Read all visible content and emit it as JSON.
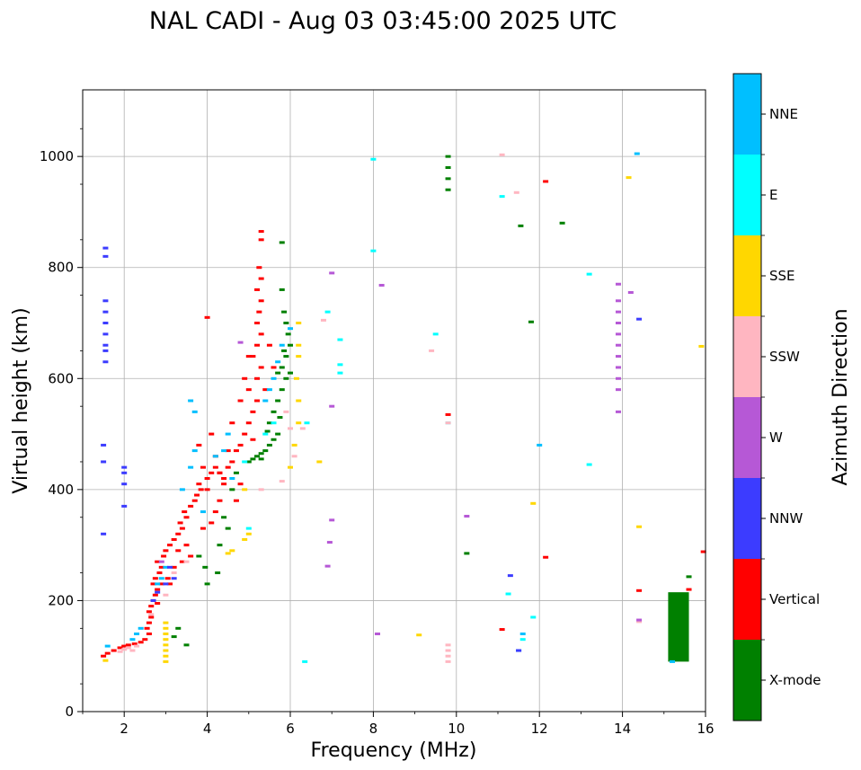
{
  "chart_data": {
    "type": "scatter",
    "title": "NAL CADI - Aug 03 03:45:00 2025 UTC",
    "xlabel": "Frequency (MHz)",
    "ylabel": "Virtual height (km)",
    "xlim": [
      1,
      16
    ],
    "ylim": [
      0,
      1120
    ],
    "xticks": [
      2,
      4,
      6,
      8,
      10,
      12,
      14,
      16
    ],
    "yticks": [
      0,
      200,
      400,
      600,
      800,
      1000
    ],
    "grid": true,
    "colorbar": {
      "title": "Azimuth Direction",
      "categories": [
        {
          "label": "NNE",
          "color": "#00bfff"
        },
        {
          "label": "E",
          "color": "#00ffff"
        },
        {
          "label": "SSE",
          "color": "#ffd700"
        },
        {
          "label": "SSW",
          "color": "#ffb6c1"
        },
        {
          "label": "W",
          "color": "#b658d6"
        },
        {
          "label": "NNW",
          "color": "#3c3cff"
        },
        {
          "label": "Vertical",
          "color": "#ff0000"
        },
        {
          "label": "X-mode",
          "color": "#008000"
        }
      ]
    },
    "series": [
      {
        "name": "Vertical",
        "color": "#ff0000",
        "points": [
          [
            1.5,
            100
          ],
          [
            1.6,
            105
          ],
          [
            1.75,
            110
          ],
          [
            1.9,
            115
          ],
          [
            2.0,
            118
          ],
          [
            2.1,
            120
          ],
          [
            2.25,
            122
          ],
          [
            2.4,
            125
          ],
          [
            2.5,
            130
          ],
          [
            2.6,
            140
          ],
          [
            2.55,
            150
          ],
          [
            2.6,
            160
          ],
          [
            2.65,
            170
          ],
          [
            2.6,
            180
          ],
          [
            2.65,
            190
          ],
          [
            2.7,
            200
          ],
          [
            2.75,
            210
          ],
          [
            2.8,
            220
          ],
          [
            2.7,
            230
          ],
          [
            2.75,
            240
          ],
          [
            2.85,
            250
          ],
          [
            2.9,
            260
          ],
          [
            2.8,
            270
          ],
          [
            2.95,
            280
          ],
          [
            3.0,
            290
          ],
          [
            3.1,
            300
          ],
          [
            3.2,
            310
          ],
          [
            3.3,
            320
          ],
          [
            3.4,
            330
          ],
          [
            3.35,
            340
          ],
          [
            3.5,
            350
          ],
          [
            3.45,
            360
          ],
          [
            3.6,
            370
          ],
          [
            3.7,
            380
          ],
          [
            3.75,
            390
          ],
          [
            3.85,
            400
          ],
          [
            3.8,
            410
          ],
          [
            4.0,
            420
          ],
          [
            4.1,
            430
          ],
          [
            4.2,
            440
          ],
          [
            4.3,
            430
          ],
          [
            4.4,
            420
          ],
          [
            4.5,
            440
          ],
          [
            4.6,
            450
          ],
          [
            4.7,
            470
          ],
          [
            4.8,
            480
          ],
          [
            4.9,
            500
          ],
          [
            5.0,
            520
          ],
          [
            5.1,
            540
          ],
          [
            5.2,
            560
          ],
          [
            5.0,
            580
          ],
          [
            5.2,
            600
          ],
          [
            5.3,
            620
          ],
          [
            5.1,
            640
          ],
          [
            5.2,
            660
          ],
          [
            5.3,
            680
          ],
          [
            5.2,
            700
          ],
          [
            5.25,
            720
          ],
          [
            5.3,
            740
          ],
          [
            5.2,
            760
          ],
          [
            5.3,
            780
          ],
          [
            5.25,
            800
          ],
          [
            5.3,
            850
          ],
          [
            5.3,
            865
          ],
          [
            3.4,
            270
          ],
          [
            3.6,
            280
          ],
          [
            3.5,
            300
          ],
          [
            3.3,
            290
          ],
          [
            3.9,
            330
          ],
          [
            4.1,
            340
          ],
          [
            4.2,
            360
          ],
          [
            4.3,
            380
          ],
          [
            4.0,
            400
          ],
          [
            3.9,
            440
          ],
          [
            4.2,
            460
          ],
          [
            4.5,
            470
          ],
          [
            4.6,
            520
          ],
          [
            4.8,
            560
          ],
          [
            4.9,
            600
          ],
          [
            5.0,
            640
          ],
          [
            4.1,
            500
          ],
          [
            3.8,
            480
          ],
          [
            4.0,
            710
          ],
          [
            4.3,
            430
          ],
          [
            4.4,
            410
          ],
          [
            3.2,
            260
          ],
          [
            3.05,
            240
          ],
          [
            2.9,
            230
          ],
          [
            2.8,
            195
          ],
          [
            3.1,
            230
          ],
          [
            4.7,
            380
          ],
          [
            4.8,
            410
          ],
          [
            5.1,
            490
          ],
          [
            5.4,
            580
          ],
          [
            5.6,
            620
          ],
          [
            5.5,
            660
          ],
          [
            11.1,
            148
          ],
          [
            12.15,
            278
          ],
          [
            12.15,
            955
          ],
          [
            14.4,
            218
          ],
          [
            15.95,
            288
          ],
          [
            15.6,
            220
          ],
          [
            9.8,
            535
          ]
        ]
      },
      {
        "name": "X-mode",
        "color": "#008000",
        "points": [
          [
            5.0,
            450
          ],
          [
            5.1,
            455
          ],
          [
            5.2,
            460
          ],
          [
            5.3,
            465
          ],
          [
            5.4,
            470
          ],
          [
            5.5,
            480
          ],
          [
            5.6,
            490
          ],
          [
            5.7,
            500
          ],
          [
            5.5,
            520
          ],
          [
            5.6,
            540
          ],
          [
            5.7,
            560
          ],
          [
            5.8,
            580
          ],
          [
            5.9,
            600
          ],
          [
            5.8,
            620
          ],
          [
            5.9,
            640
          ],
          [
            6.0,
            660
          ],
          [
            5.95,
            680
          ],
          [
            5.9,
            700
          ],
          [
            5.85,
            720
          ],
          [
            5.8,
            760
          ],
          [
            5.8,
            845
          ],
          [
            5.3,
            455
          ],
          [
            5.45,
            505
          ],
          [
            5.75,
            530
          ],
          [
            5.7,
            610
          ],
          [
            6.0,
            610
          ],
          [
            5.85,
            650
          ],
          [
            4.5,
            330
          ],
          [
            4.4,
            350
          ],
          [
            4.3,
            300
          ],
          [
            4.25,
            250
          ],
          [
            4.0,
            230
          ],
          [
            3.95,
            260
          ],
          [
            3.8,
            280
          ],
          [
            3.5,
            120
          ],
          [
            3.3,
            150
          ],
          [
            3.2,
            135
          ],
          [
            4.6,
            400
          ],
          [
            4.7,
            430
          ],
          [
            10.25,
            285
          ],
          [
            11.8,
            702
          ],
          [
            11.55,
            875
          ],
          [
            12.55,
            880
          ],
          [
            9.8,
            980
          ],
          [
            9.8,
            1000
          ],
          [
            9.8,
            960
          ],
          [
            9.8,
            940
          ],
          [
            15.6,
            243
          ]
        ]
      },
      {
        "name": "NNE",
        "color": "#00bfff",
        "points": [
          [
            2.2,
            130
          ],
          [
            2.3,
            140
          ],
          [
            2.4,
            150
          ],
          [
            2.8,
            230
          ],
          [
            2.9,
            240
          ],
          [
            3.0,
            260
          ],
          [
            3.4,
            400
          ],
          [
            3.6,
            440
          ],
          [
            3.7,
            470
          ],
          [
            3.6,
            560
          ],
          [
            3.7,
            540
          ],
          [
            4.2,
            460
          ],
          [
            4.4,
            470
          ],
          [
            4.5,
            500
          ],
          [
            5.4,
            560
          ],
          [
            5.5,
            580
          ],
          [
            5.6,
            600
          ],
          [
            5.7,
            630
          ],
          [
            5.8,
            660
          ],
          [
            6.0,
            690
          ],
          [
            12.0,
            480
          ],
          [
            11.5,
            110
          ],
          [
            11.6,
            140
          ],
          [
            15.2,
            90
          ],
          [
            14.35,
            1005
          ],
          [
            3.9,
            360
          ],
          [
            4.6,
            420
          ],
          [
            1.6,
            118
          ]
        ]
      },
      {
        "name": "E",
        "color": "#00ffff",
        "points": [
          [
            5.0,
            330
          ],
          [
            5.4,
            500
          ],
          [
            5.6,
            520
          ],
          [
            6.35,
            90
          ],
          [
            6.9,
            720
          ],
          [
            7.2,
            670
          ],
          [
            7.2,
            610
          ],
          [
            7.2,
            625
          ],
          [
            8.0,
            830
          ],
          [
            8.0,
            995
          ],
          [
            9.5,
            680
          ],
          [
            9.8,
            520
          ],
          [
            11.25,
            212
          ],
          [
            11.1,
            928
          ],
          [
            11.6,
            130
          ],
          [
            11.85,
            170
          ],
          [
            13.2,
            445
          ],
          [
            13.2,
            788
          ],
          [
            4.9,
            450
          ],
          [
            6.4,
            520
          ]
        ]
      },
      {
        "name": "SSE",
        "color": "#ffd700",
        "points": [
          [
            3.0,
            90
          ],
          [
            3.0,
            100
          ],
          [
            3.0,
            110
          ],
          [
            3.0,
            120
          ],
          [
            3.0,
            130
          ],
          [
            3.0,
            140
          ],
          [
            3.0,
            150
          ],
          [
            3.0,
            160
          ],
          [
            4.5,
            285
          ],
          [
            4.6,
            290
          ],
          [
            4.9,
            310
          ],
          [
            5.0,
            320
          ],
          [
            6.0,
            440
          ],
          [
            6.1,
            480
          ],
          [
            6.2,
            520
          ],
          [
            6.2,
            560
          ],
          [
            6.15,
            600
          ],
          [
            6.2,
            640
          ],
          [
            6.2,
            660
          ],
          [
            6.2,
            700
          ],
          [
            6.7,
            450
          ],
          [
            9.1,
            138
          ],
          [
            11.85,
            375
          ],
          [
            14.15,
            962
          ],
          [
            14.4,
            333
          ],
          [
            15.9,
            658
          ],
          [
            4.9,
            400
          ],
          [
            1.55,
            92
          ]
        ]
      },
      {
        "name": "SSW",
        "color": "#ffb6c1",
        "points": [
          [
            1.9,
            108
          ],
          [
            2.0,
            112
          ],
          [
            2.1,
            115
          ],
          [
            2.2,
            110
          ],
          [
            2.3,
            118
          ],
          [
            2.65,
            175
          ],
          [
            3.0,
            210
          ],
          [
            3.2,
            250
          ],
          [
            3.5,
            270
          ],
          [
            5.8,
            415
          ],
          [
            5.9,
            540
          ],
          [
            6.0,
            510
          ],
          [
            9.8,
            90
          ],
          [
            9.8,
            100
          ],
          [
            9.8,
            110
          ],
          [
            9.8,
            120
          ],
          [
            9.8,
            520
          ],
          [
            9.4,
            650
          ],
          [
            11.1,
            1003
          ],
          [
            11.45,
            935
          ],
          [
            6.8,
            705
          ],
          [
            14.4,
            162
          ],
          [
            5.3,
            400
          ],
          [
            6.1,
            460
          ],
          [
            6.3,
            510
          ]
        ]
      },
      {
        "name": "W",
        "color": "#b658d6",
        "points": [
          [
            13.9,
            540
          ],
          [
            13.9,
            580
          ],
          [
            13.9,
            600
          ],
          [
            13.9,
            620
          ],
          [
            13.9,
            640
          ],
          [
            13.9,
            660
          ],
          [
            13.9,
            680
          ],
          [
            13.9,
            700
          ],
          [
            13.9,
            720
          ],
          [
            13.9,
            740
          ],
          [
            13.9,
            770
          ],
          [
            14.2,
            755
          ],
          [
            14.4,
            165
          ],
          [
            10.25,
            352
          ],
          [
            8.2,
            768
          ],
          [
            8.1,
            140
          ],
          [
            6.9,
            262
          ],
          [
            6.95,
            305
          ],
          [
            7.0,
            345
          ],
          [
            7.0,
            550
          ],
          [
            7.0,
            790
          ],
          [
            4.8,
            665
          ],
          [
            2.9,
            270
          ]
        ]
      },
      {
        "name": "NNW",
        "color": "#3c3cff",
        "points": [
          [
            1.5,
            320
          ],
          [
            1.5,
            480
          ],
          [
            1.5,
            450
          ],
          [
            1.55,
            630
          ],
          [
            1.55,
            650
          ],
          [
            1.55,
            660
          ],
          [
            1.55,
            680
          ],
          [
            1.55,
            700
          ],
          [
            1.55,
            720
          ],
          [
            1.55,
            740
          ],
          [
            1.55,
            820
          ],
          [
            1.55,
            835
          ],
          [
            2.0,
            410
          ],
          [
            2.0,
            430
          ],
          [
            2.0,
            440
          ],
          [
            2.0,
            370
          ],
          [
            2.7,
            200
          ],
          [
            2.8,
            215
          ],
          [
            3.0,
            230
          ],
          [
            3.2,
            240
          ],
          [
            11.3,
            245
          ],
          [
            11.5,
            110
          ],
          [
            14.4,
            707
          ],
          [
            3.1,
            260
          ]
        ]
      }
    ],
    "bands": [
      {
        "name": "X-mode",
        "color": "#008000",
        "x": [
          15.1,
          15.6
        ],
        "y": [
          90,
          215
        ]
      }
    ]
  }
}
